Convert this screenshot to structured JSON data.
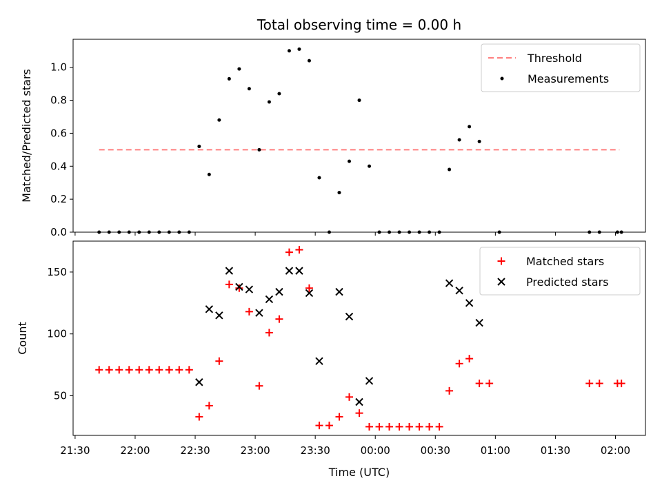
{
  "title": "Total observing time = 0.00 h",
  "colors": {
    "threshold": "#ff7f7f",
    "measurements": "#000000",
    "matched": "#ff0000",
    "predicted": "#000000"
  },
  "chart_data": [
    {
      "type": "scatter",
      "ylabel": "Matched/Predicted stars",
      "ylim": [
        0,
        1.17
      ],
      "yticks": [
        0.0,
        0.2,
        0.4,
        0.6,
        0.8,
        1.0
      ],
      "ytick_labels": [
        "0.0",
        "0.2",
        "0.4",
        "0.6",
        "0.8",
        "1.0"
      ],
      "legend": {
        "placement": "upper-right",
        "entries": [
          "Threshold",
          "Measurements"
        ]
      },
      "threshold": {
        "name": "Threshold",
        "y": 0.5,
        "x_start": "21:42",
        "x_end": "02:02"
      },
      "series": [
        {
          "name": "Measurements",
          "points": [
            [
              "21:42",
              0
            ],
            [
              "21:47",
              0
            ],
            [
              "21:52",
              0
            ],
            [
              "21:57",
              0
            ],
            [
              "22:02",
              0
            ],
            [
              "22:07",
              0
            ],
            [
              "22:12",
              0
            ],
            [
              "22:17",
              0
            ],
            [
              "22:22",
              0
            ],
            [
              "22:27",
              0
            ],
            [
              "22:32",
              0.52
            ],
            [
              "22:37",
              0.35
            ],
            [
              "22:42",
              0.68
            ],
            [
              "22:47",
              0.93
            ],
            [
              "22:52",
              0.99
            ],
            [
              "22:57",
              0.87
            ],
            [
              "23:02",
              0.5
            ],
            [
              "23:07",
              0.79
            ],
            [
              "23:12",
              0.84
            ],
            [
              "23:17",
              1.1
            ],
            [
              "23:22",
              1.11
            ],
            [
              "23:27",
              1.04
            ],
            [
              "23:32",
              0.33
            ],
            [
              "23:37",
              0
            ],
            [
              "23:42",
              0.24
            ],
            [
              "23:47",
              0.43
            ],
            [
              "23:52",
              0.8
            ],
            [
              "23:57",
              0.4
            ],
            [
              "00:02",
              0
            ],
            [
              "00:07",
              0
            ],
            [
              "00:12",
              0
            ],
            [
              "00:17",
              0
            ],
            [
              "00:22",
              0
            ],
            [
              "00:27",
              0
            ],
            [
              "00:32",
              0
            ],
            [
              "00:37",
              0.38
            ],
            [
              "00:42",
              0.56
            ],
            [
              "00:47",
              0.64
            ],
            [
              "00:52",
              0.55
            ],
            [
              "01:02",
              0
            ],
            [
              "01:47",
              0
            ],
            [
              "01:52",
              0
            ],
            [
              "02:01",
              0
            ],
            [
              "02:03",
              0
            ]
          ]
        }
      ]
    },
    {
      "type": "scatter",
      "xlabel": "Time (UTC)",
      "ylabel": "Count",
      "ylim": [
        18,
        175
      ],
      "yticks": [
        50,
        100,
        150
      ],
      "ytick_labels": [
        "50",
        "100",
        "150"
      ],
      "xlim": [
        "21:29",
        "02:15"
      ],
      "xticks": [
        "21:30",
        "22:00",
        "22:30",
        "23:00",
        "23:30",
        "00:00",
        "00:30",
        "01:00",
        "01:30",
        "02:00"
      ],
      "legend": {
        "placement": "upper-right",
        "entries": [
          "Matched stars",
          "Predicted stars"
        ]
      },
      "series": [
        {
          "name": "Matched stars",
          "points": [
            [
              "21:42",
              71
            ],
            [
              "21:47",
              71
            ],
            [
              "21:52",
              71
            ],
            [
              "21:57",
              71
            ],
            [
              "22:02",
              71
            ],
            [
              "22:07",
              71
            ],
            [
              "22:12",
              71
            ],
            [
              "22:17",
              71
            ],
            [
              "22:22",
              71
            ],
            [
              "22:27",
              71
            ],
            [
              "22:32",
              33
            ],
            [
              "22:37",
              42
            ],
            [
              "22:42",
              78
            ],
            [
              "22:47",
              140
            ],
            [
              "22:52",
              137
            ],
            [
              "22:57",
              118
            ],
            [
              "23:02",
              58
            ],
            [
              "23:07",
              101
            ],
            [
              "23:12",
              112
            ],
            [
              "23:17",
              166
            ],
            [
              "23:22",
              168
            ],
            [
              "23:27",
              137
            ],
            [
              "23:32",
              26
            ],
            [
              "23:37",
              26
            ],
            [
              "23:42",
              33
            ],
            [
              "23:47",
              49
            ],
            [
              "23:52",
              36
            ],
            [
              "23:57",
              25
            ],
            [
              "00:02",
              25
            ],
            [
              "00:07",
              25
            ],
            [
              "00:12",
              25
            ],
            [
              "00:17",
              25
            ],
            [
              "00:22",
              25
            ],
            [
              "00:27",
              25
            ],
            [
              "00:32",
              25
            ],
            [
              "00:37",
              54
            ],
            [
              "00:42",
              76
            ],
            [
              "00:47",
              80
            ],
            [
              "00:52",
              60
            ],
            [
              "00:57",
              60
            ],
            [
              "01:47",
              60
            ],
            [
              "01:52",
              60
            ],
            [
              "02:01",
              60
            ],
            [
              "02:03",
              60
            ]
          ]
        },
        {
          "name": "Predicted stars",
          "points": [
            [
              "22:32",
              61
            ],
            [
              "22:37",
              120
            ],
            [
              "22:42",
              115
            ],
            [
              "22:47",
              151
            ],
            [
              "22:52",
              138
            ],
            [
              "22:57",
              136
            ],
            [
              "23:02",
              117
            ],
            [
              "23:07",
              128
            ],
            [
              "23:12",
              134
            ],
            [
              "23:17",
              151
            ],
            [
              "23:22",
              151
            ],
            [
              "23:27",
              133
            ],
            [
              "23:32",
              78
            ],
            [
              "23:42",
              134
            ],
            [
              "23:47",
              114
            ],
            [
              "23:52",
              45
            ],
            [
              "23:57",
              62
            ],
            [
              "00:37",
              141
            ],
            [
              "00:42",
              135
            ],
            [
              "00:47",
              125
            ],
            [
              "00:52",
              109
            ]
          ]
        }
      ]
    }
  ]
}
